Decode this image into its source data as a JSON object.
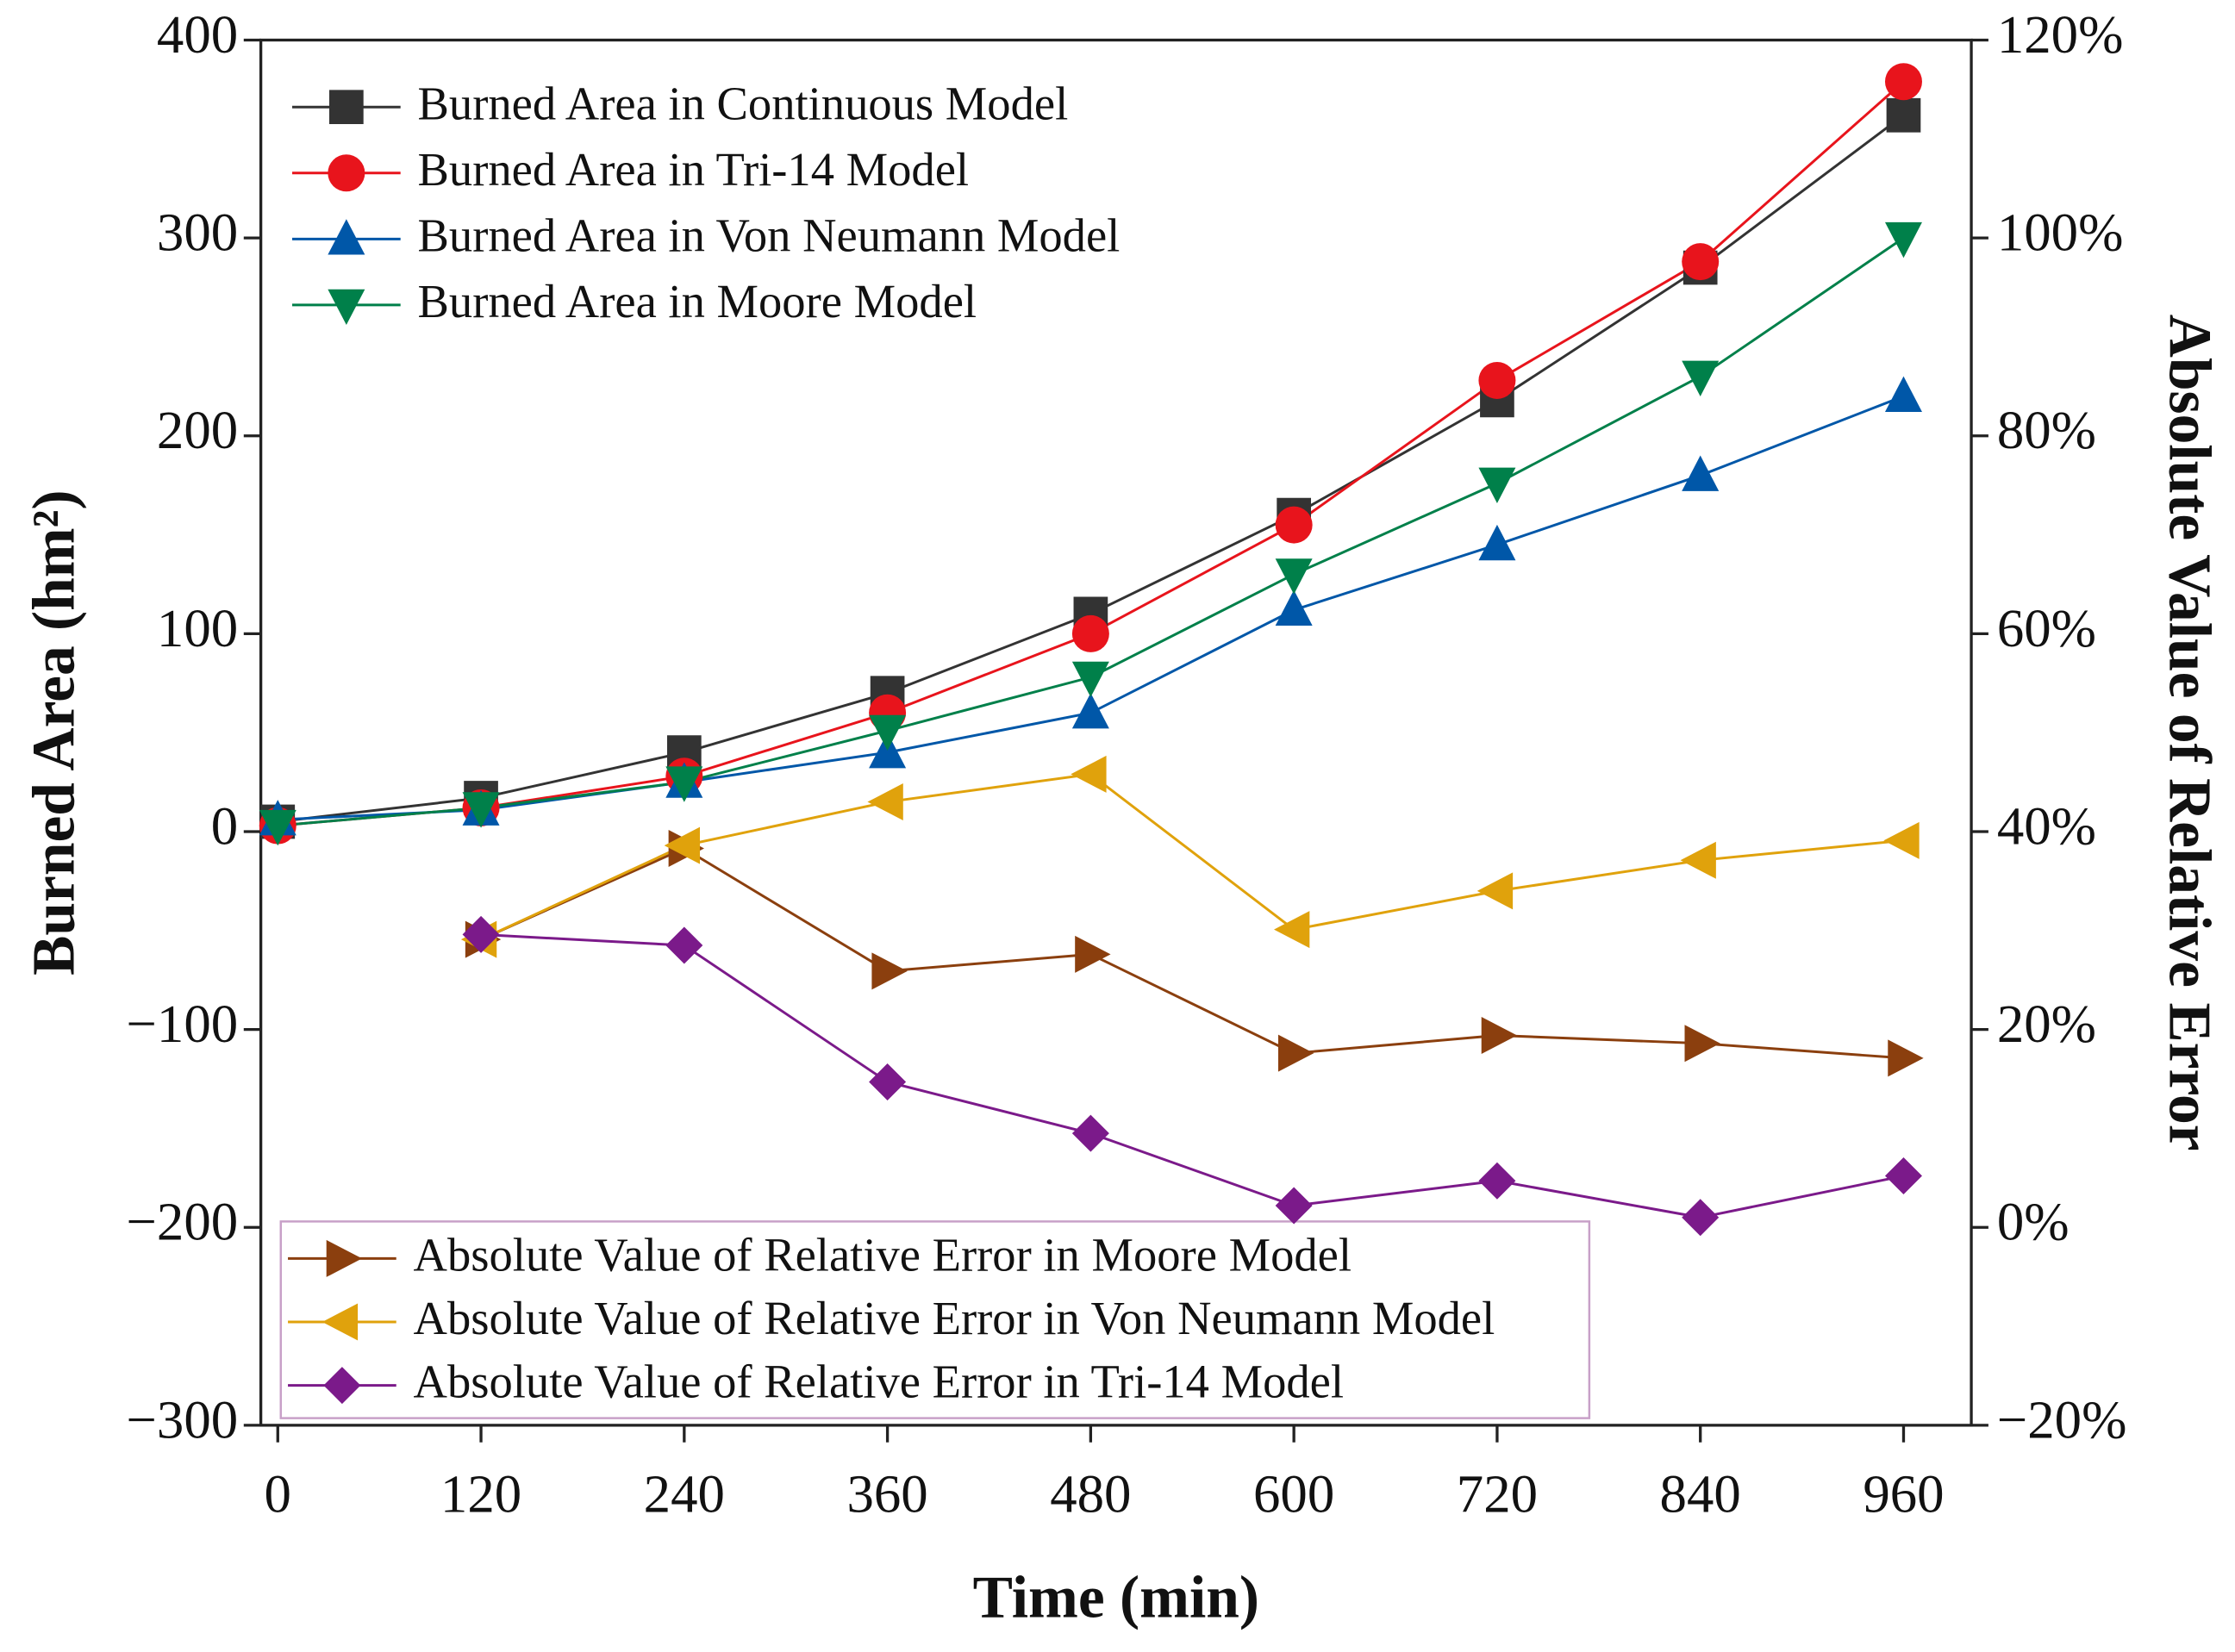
{
  "chart_data": {
    "type": "line",
    "x_label": "Time (min)",
    "y_label": "Burned Area (hm²)",
    "y2_label": "Absolute Value of Relative Error",
    "x": [
      0,
      120,
      240,
      360,
      480,
      600,
      720,
      840,
      960
    ],
    "xlim": [
      -10,
      1000
    ],
    "xticks": [
      0,
      120,
      240,
      360,
      480,
      600,
      720,
      840,
      960
    ],
    "ylim": [
      -300,
      400
    ],
    "yticks": [
      {
        "value": -300,
        "label": "−300"
      },
      {
        "value": -200,
        "label": "−200"
      },
      {
        "value": -100,
        "label": "−100"
      },
      0,
      100,
      200,
      300,
      400
    ],
    "y2lim": [
      -20,
      120
    ],
    "y2ticks": [
      {
        "value": -20,
        "label": "−20%"
      },
      {
        "value": 0,
        "label": "0%"
      },
      {
        "value": 20,
        "label": "20%"
      },
      {
        "value": 40,
        "label": "40%"
      },
      {
        "value": 60,
        "label": "60%"
      },
      {
        "value": 80,
        "label": "80%"
      },
      {
        "value": 100,
        "label": "100%"
      },
      {
        "value": 120,
        "label": "120%"
      }
    ],
    "legend": "upper left",
    "legend2": "lower left",
    "series": [
      {
        "name": "Burned Area in Continuous Model",
        "color": "#333333",
        "marker": "square",
        "values": [
          5,
          17,
          40,
          70,
          110,
          160,
          218,
          285,
          362
        ]
      },
      {
        "name": "Burned Area in Tri-14 Model",
        "color": "#e8141c",
        "marker": "circle",
        "values": [
          3,
          12,
          28,
          60,
          100,
          155,
          228,
          288,
          379
        ]
      },
      {
        "name": "Burned Area in Von Neumann Model",
        "color": "#0057a8",
        "marker": "triangle-up",
        "values": [
          6,
          11,
          25,
          40,
          60,
          112,
          145,
          180,
          220
        ]
      },
      {
        "name": "Burned Area in Moore Model",
        "color": "#00804a",
        "marker": "triangle-down",
        "values": [
          3,
          12,
          25,
          51,
          78,
          130,
          176,
          230,
          300
        ]
      },
      {
        "name": "Absolute Value of Relative Error in Moore Model",
        "color": "#8b3f0e",
        "marker": "triangle-right",
        "axis": "y2",
        "values": [
          null,
          29.1,
          38.3,
          25.9,
          27.6,
          17.6,
          19.4,
          18.6,
          17.1
        ]
      },
      {
        "name": "Absolute Value of Relative Error in Von Neumann Model",
        "color": "#e0a20c",
        "marker": "triangle-left",
        "axis": "y2",
        "values": [
          null,
          29.1,
          38.6,
          43,
          45.8,
          30.1,
          34,
          37.1,
          39.1
        ]
      },
      {
        "name": "Absolute Value of Relative Error in Tri-14 Model",
        "color": "#7b1a8a",
        "marker": "diamond",
        "axis": "y2",
        "values": [
          null,
          29.6,
          28.5,
          14.7,
          9.5,
          2.2,
          4.7,
          1,
          5.2
        ]
      }
    ]
  }
}
